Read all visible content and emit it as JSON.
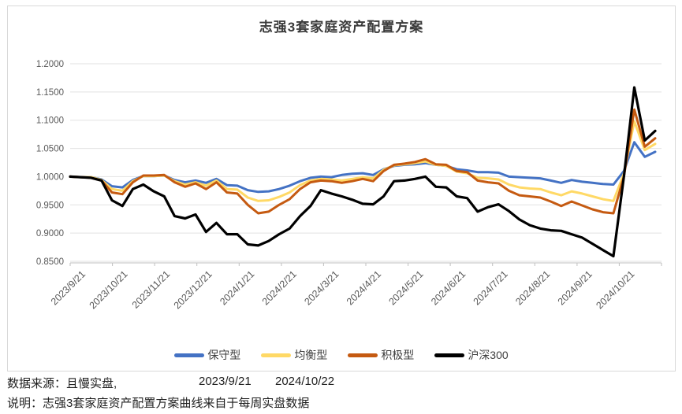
{
  "chart_data": {
    "type": "line",
    "title": "志强3套家庭资产配置方案",
    "x_tick_labels": [
      "2023/9/21",
      "2023/10/21",
      "2023/11/21",
      "2023/12/21",
      "2024/1/21",
      "2024/2/21",
      "2024/3/21",
      "2024/4/21",
      "2024/5/21",
      "2024/6/21",
      "2024/7/21",
      "2024/8/21",
      "2024/9/21",
      "2024/10/21"
    ],
    "y_tick_labels": [
      "1.2000",
      "1.1500",
      "1.1000",
      "1.0500",
      "1.0000",
      "0.9500",
      "0.9000",
      "0.8500"
    ],
    "ylim": [
      0.85,
      1.2
    ],
    "grid": true,
    "legend_position": "bottom",
    "x_frequency": "weekly",
    "series": [
      {
        "name": "保守型",
        "color": "#4472C4",
        "values": [
          1.0,
          0.999,
          0.999,
          0.995,
          0.983,
          0.981,
          0.994,
          1.001,
          1.001,
          1.002,
          0.994,
          0.99,
          0.993,
          0.989,
          0.996,
          0.985,
          0.984,
          0.976,
          0.973,
          0.974,
          0.978,
          0.984,
          0.992,
          0.998,
          1.0,
          0.999,
          1.003,
          1.005,
          1.006,
          1.003,
          1.013,
          1.019,
          1.021,
          1.022,
          1.024,
          1.021,
          1.019,
          1.013,
          1.011,
          1.008,
          1.008,
          1.007,
          1.0,
          0.999,
          0.998,
          0.997,
          0.993,
          0.989,
          0.994,
          0.991,
          0.989,
          0.987,
          0.986,
          1.01,
          1.061,
          1.035,
          1.044
        ]
      },
      {
        "name": "均衡型",
        "color": "#FFD966",
        "values": [
          1.0,
          0.999,
          0.999,
          0.994,
          0.978,
          0.975,
          0.992,
          1.001,
          1.001,
          1.002,
          0.992,
          0.986,
          0.99,
          0.984,
          0.993,
          0.978,
          0.977,
          0.963,
          0.957,
          0.958,
          0.964,
          0.972,
          0.985,
          0.993,
          0.996,
          0.995,
          0.993,
          0.996,
          0.999,
          0.997,
          1.012,
          1.02,
          1.022,
          1.024,
          1.027,
          1.021,
          1.019,
          1.009,
          1.006,
          0.998,
          0.997,
          0.995,
          0.986,
          0.981,
          0.979,
          0.978,
          0.972,
          0.967,
          0.974,
          0.97,
          0.965,
          0.96,
          0.957,
          1.005,
          1.098,
          1.047,
          1.058
        ]
      },
      {
        "name": "积极型",
        "color": "#C55A11",
        "values": [
          1.0,
          0.999,
          0.998,
          0.993,
          0.972,
          0.969,
          0.99,
          1.002,
          1.002,
          1.003,
          0.99,
          0.982,
          0.988,
          0.978,
          0.99,
          0.972,
          0.97,
          0.95,
          0.935,
          0.938,
          0.95,
          0.96,
          0.978,
          0.99,
          0.993,
          0.992,
          0.989,
          0.992,
          0.996,
          0.992,
          1.01,
          1.021,
          1.023,
          1.026,
          1.031,
          1.022,
          1.021,
          1.01,
          1.008,
          0.993,
          0.99,
          0.988,
          0.975,
          0.967,
          0.965,
          0.963,
          0.956,
          0.948,
          0.956,
          0.949,
          0.942,
          0.937,
          0.935,
          1.0,
          1.119,
          1.053,
          1.068
        ]
      },
      {
        "name": "沪深300",
        "color": "#000000",
        "values": [
          1.0,
          0.999,
          0.998,
          0.993,
          0.958,
          0.948,
          0.978,
          0.986,
          0.974,
          0.965,
          0.93,
          0.926,
          0.933,
          0.902,
          0.918,
          0.898,
          0.898,
          0.88,
          0.878,
          0.886,
          0.898,
          0.908,
          0.93,
          0.948,
          0.976,
          0.97,
          0.965,
          0.959,
          0.952,
          0.951,
          0.965,
          0.992,
          0.993,
          0.996,
          1.0,
          0.982,
          0.981,
          0.965,
          0.962,
          0.938,
          0.946,
          0.951,
          0.939,
          0.924,
          0.914,
          0.908,
          0.905,
          0.904,
          0.898,
          0.892,
          0.881,
          0.87,
          0.859,
          1.0,
          1.158,
          1.064,
          1.081
        ]
      }
    ]
  },
  "footer": {
    "source_label": "数据来源：且慢实盘,",
    "source_date_start": "2023/9/21",
    "source_date_end": "2024/10/22",
    "note": "说明：志强3套家庭资产配置方案曲线来自于每周实盘数据"
  }
}
